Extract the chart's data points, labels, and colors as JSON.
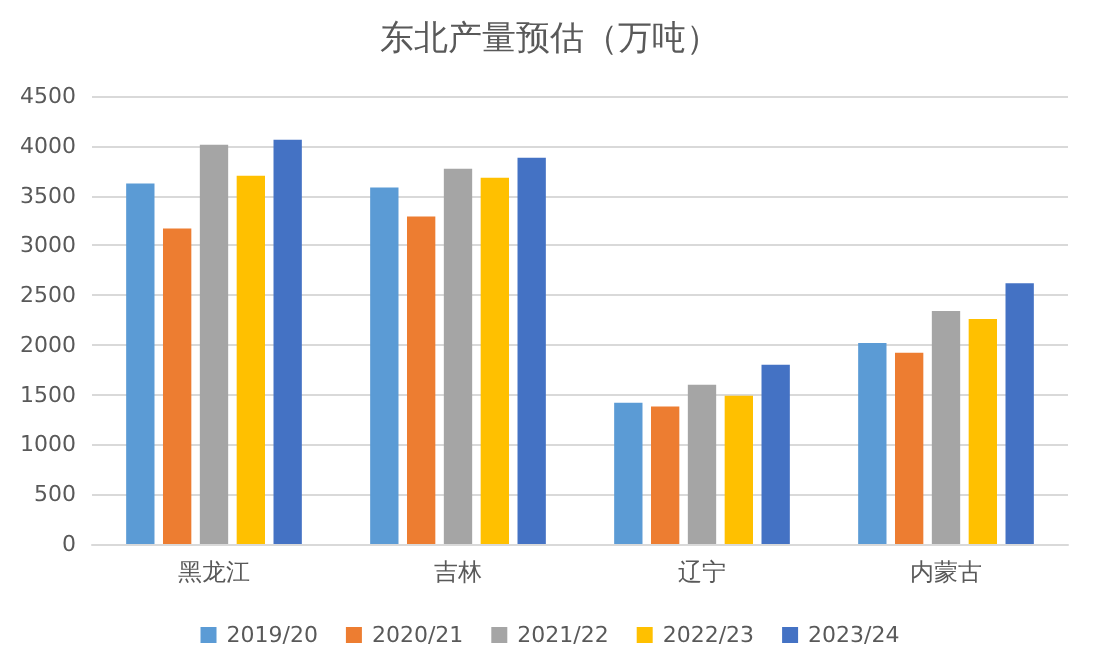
{
  "chart_data": {
    "type": "bar",
    "title": "东北产量预估（万吨）",
    "categories": [
      "黑龙江",
      "吉林",
      "辽宁",
      "内蒙古"
    ],
    "series": [
      {
        "name": "2019/20",
        "color": "#5b9bd5",
        "values": [
          3620,
          3580,
          1420,
          2020
        ]
      },
      {
        "name": "2020/21",
        "color": "#ed7d31",
        "values": [
          3170,
          3290,
          1380,
          1920
        ]
      },
      {
        "name": "2021/22",
        "color": "#a5a5a5",
        "values": [
          4010,
          3770,
          1600,
          2340
        ]
      },
      {
        "name": "2022/23",
        "color": "#ffc000",
        "values": [
          3700,
          3680,
          1490,
          2260
        ]
      },
      {
        "name": "2023/24",
        "color": "#4472c4",
        "values": [
          4060,
          3880,
          1800,
          2620
        ]
      }
    ],
    "ylim": [
      0,
      4500
    ],
    "yticks": [
      0,
      500,
      1000,
      1500,
      2000,
      2500,
      3000,
      3500,
      4000,
      4500
    ],
    "grid": "y",
    "legend": "bottom"
  }
}
